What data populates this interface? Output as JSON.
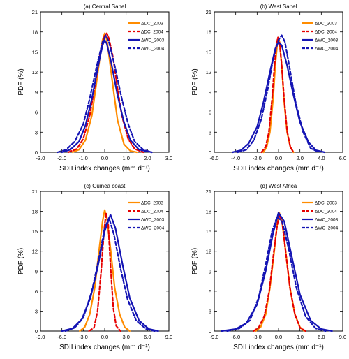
{
  "chart_data": [
    {
      "type": "line",
      "title": "(a) Central Sahel",
      "xlabel": "SDII index changes (mm d⁻¹)",
      "ylabel": "PDF (%)",
      "xlim": [
        -3.0,
        3.0
      ],
      "ylim": [
        0,
        21
      ],
      "xticks": [
        -3.0,
        -2.0,
        -1.0,
        0.0,
        1.0,
        2.0,
        3.0
      ],
      "xtick_labels": [
        "-3.0",
        "-2.0",
        "-1.0",
        "0.0",
        "1.0",
        "2.0",
        "3.0"
      ],
      "yticks": [
        0,
        3,
        6,
        9,
        12,
        15,
        18,
        21
      ],
      "ytick_labels": [
        "0",
        "3",
        "6",
        "9",
        "12",
        "15",
        "18",
        "21"
      ],
      "legend_position": "top-right",
      "series": [
        {
          "name": "ΔDC_2003",
          "color": "#ff8c00",
          "dash": "solid",
          "x": [
            -1.5,
            -1.2,
            -0.9,
            -0.6,
            -0.4,
            -0.2,
            -0.1,
            0.0,
            0.1,
            0.2,
            0.4,
            0.6,
            0.9,
            1.2,
            1.5
          ],
          "y": [
            0,
            0.4,
            1.8,
            5.5,
            10.0,
            14.8,
            16.8,
            17.8,
            16.8,
            14.5,
            9.5,
            4.8,
            1.2,
            0.2,
            0
          ]
        },
        {
          "name": "ΔDC_2004",
          "color": "#e60000",
          "dash": "dash",
          "x": [
            -1.7,
            -1.3,
            -1.0,
            -0.7,
            -0.4,
            -0.2,
            0.0,
            0.1,
            0.2,
            0.4,
            0.6,
            0.8,
            1.1,
            1.4,
            1.8
          ],
          "y": [
            0,
            0.5,
            2.0,
            5.5,
            11.0,
            15.0,
            17.5,
            17.8,
            17.0,
            14.0,
            9.5,
            5.5,
            2.0,
            0.5,
            0
          ]
        },
        {
          "name": "ΔWC_2003",
          "color": "#1414b4",
          "dash": "solid",
          "x": [
            -2.0,
            -1.6,
            -1.2,
            -0.9,
            -0.6,
            -0.3,
            -0.1,
            0.0,
            0.1,
            0.3,
            0.6,
            0.9,
            1.2,
            1.6,
            2.2
          ],
          "y": [
            0,
            0.4,
            1.6,
            4.0,
            8.0,
            13.0,
            16.0,
            16.8,
            16.2,
            13.5,
            8.5,
            4.5,
            1.8,
            0.4,
            0
          ]
        },
        {
          "name": "ΔWC_2004",
          "color": "#1414b4",
          "dash": "dash",
          "x": [
            -2.2,
            -1.8,
            -1.4,
            -1.0,
            -0.7,
            -0.4,
            -0.1,
            0.05,
            0.2,
            0.5,
            0.8,
            1.1,
            1.4,
            1.8,
            2.2
          ],
          "y": [
            0,
            0.4,
            1.6,
            4.2,
            8.0,
            12.5,
            16.5,
            17.5,
            16.5,
            12.5,
            8.0,
            4.2,
            1.6,
            0.4,
            0
          ]
        }
      ]
    },
    {
      "type": "line",
      "title": "(b) West Sahel",
      "xlabel": "SDII index changes (mm d⁻¹)",
      "ylabel": "PDF (%)",
      "xlim": [
        -6.0,
        6.0
      ],
      "ylim": [
        0,
        21
      ],
      "xticks": [
        -6.0,
        -4.0,
        -2.0,
        0.0,
        2.0,
        4.0,
        6.0
      ],
      "xtick_labels": [
        "-6.0",
        "-4.0",
        "-2.0",
        "0.0",
        "2.0",
        "4.0",
        "6.0"
      ],
      "yticks": [
        0,
        3,
        6,
        9,
        12,
        15,
        18,
        21
      ],
      "ytick_labels": [
        "0",
        "3",
        "6",
        "9",
        "12",
        "15",
        "18",
        "21"
      ],
      "legend_position": "top-right",
      "series": [
        {
          "name": "ΔDC_2003",
          "color": "#ff8c00",
          "dash": "solid",
          "x": [
            -1.4,
            -1.1,
            -0.8,
            -0.5,
            -0.3,
            -0.1,
            0.0,
            0.1,
            0.3,
            0.5,
            0.8,
            1.1,
            1.4
          ],
          "y": [
            0,
            0.8,
            3.0,
            8.0,
            13.0,
            16.5,
            17.0,
            16.5,
            13.0,
            8.0,
            3.0,
            0.8,
            0
          ]
        },
        {
          "name": "ΔDC_2004",
          "color": "#e60000",
          "dash": "dash",
          "x": [
            -1.6,
            -1.2,
            -0.9,
            -0.6,
            -0.4,
            -0.2,
            -0.05,
            0.1,
            0.3,
            0.5,
            0.8,
            1.1,
            1.4
          ],
          "y": [
            0,
            0.8,
            3.0,
            8.0,
            12.5,
            16.0,
            17.2,
            16.5,
            13.0,
            8.5,
            3.2,
            0.8,
            0
          ]
        },
        {
          "name": "ΔWC_2003",
          "color": "#1414b4",
          "dash": "solid",
          "x": [
            -4.3,
            -3.5,
            -2.8,
            -2.0,
            -1.4,
            -0.8,
            -0.3,
            0.0,
            0.3,
            0.8,
            1.4,
            2.0,
            2.8,
            3.5,
            4.3
          ],
          "y": [
            0,
            0.3,
            1.3,
            3.8,
            7.5,
            12.0,
            15.5,
            16.5,
            16.0,
            13.0,
            8.5,
            4.5,
            1.5,
            0.3,
            0
          ]
        },
        {
          "name": "ΔWC_2004",
          "color": "#1414b4",
          "dash": "dash",
          "x": [
            -3.8,
            -3.0,
            -2.3,
            -1.6,
            -1.0,
            -0.5,
            0.0,
            0.3,
            0.6,
            1.0,
            1.6,
            2.3,
            3.0,
            3.8
          ],
          "y": [
            0,
            0.4,
            1.8,
            5.0,
            9.5,
            14.0,
            16.8,
            17.5,
            16.5,
            13.0,
            7.5,
            3.0,
            0.6,
            0
          ]
        }
      ]
    },
    {
      "type": "line",
      "title": "(c) Guinea coast",
      "xlabel": "SDII index changes (mm d⁻¹)",
      "ylabel": "PDF (%)",
      "xlim": [
        -9.0,
        9.0
      ],
      "ylim": [
        0,
        21
      ],
      "xticks": [
        -9.0,
        -6.0,
        -3.0,
        0.0,
        3.0,
        6.0,
        9.0
      ],
      "xtick_labels": [
        "-9.0",
        "-6.0",
        "-3.0",
        "0.0",
        "3.0",
        "6.0",
        "9.0"
      ],
      "yticks": [
        0,
        3,
        6,
        9,
        12,
        15,
        18,
        21
      ],
      "ytick_labels": [
        "0",
        "3",
        "6",
        "9",
        "12",
        "15",
        "18",
        "21"
      ],
      "legend_position": "top-right",
      "series": [
        {
          "name": "ΔDC_2003",
          "color": "#ff8c00",
          "dash": "solid",
          "x": [
            -3.5,
            -2.8,
            -2.1,
            -1.4,
            -0.8,
            -0.3,
            0.0,
            0.3,
            0.8,
            1.4,
            2.1,
            2.8,
            3.5
          ],
          "y": [
            0,
            0.6,
            2.5,
            6.5,
            12.0,
            16.5,
            18.2,
            17.0,
            12.5,
            6.5,
            2.5,
            0.6,
            0
          ]
        },
        {
          "name": "ΔDC_2004",
          "color": "#e60000",
          "dash": "dash",
          "x": [
            -2.2,
            -1.5,
            -1.0,
            -0.5,
            -0.1,
            0.2,
            0.5,
            0.8,
            1.2,
            1.6,
            2.2
          ],
          "y": [
            0,
            0.5,
            3.0,
            9.0,
            15.0,
            17.8,
            16.0,
            10.0,
            3.5,
            0.8,
            0
          ]
        },
        {
          "name": "ΔWC_2003",
          "color": "#1414b4",
          "dash": "solid",
          "x": [
            -6.0,
            -4.5,
            -3.2,
            -2.0,
            -1.0,
            0.0,
            0.8,
            1.5,
            2.5,
            3.5,
            4.8,
            6.2,
            7.5
          ],
          "y": [
            0,
            0.4,
            1.8,
            5.0,
            9.5,
            15.0,
            17.5,
            15.5,
            10.0,
            5.0,
            1.6,
            0.3,
            0
          ]
        },
        {
          "name": "ΔWC_2004",
          "color": "#1414b4",
          "dash": "dash",
          "x": [
            -5.5,
            -4.2,
            -3.0,
            -1.8,
            -0.8,
            0.0,
            0.6,
            1.3,
            2.2,
            3.2,
            4.4,
            5.8,
            7.0
          ],
          "y": [
            0,
            0.5,
            2.0,
            6.0,
            11.0,
            15.5,
            17.0,
            14.5,
            9.5,
            4.8,
            1.6,
            0.3,
            0
          ]
        }
      ]
    },
    {
      "type": "line",
      "title": "(d) West Africa",
      "xlabel": "SDII index changes (mm d⁻¹)",
      "ylabel": "PDF (%)",
      "xlim": [
        -9.0,
        9.0
      ],
      "ylim": [
        0,
        21
      ],
      "xticks": [
        -9.0,
        -6.0,
        -3.0,
        0.0,
        3.0,
        6.0,
        9.0
      ],
      "xtick_labels": [
        "-9.0",
        "-6.0",
        "-3.0",
        "0.0",
        "3.0",
        "6.0",
        "9.0"
      ],
      "yticks": [
        0,
        3,
        6,
        9,
        12,
        15,
        18,
        21
      ],
      "ytick_labels": [
        "0",
        "3",
        "6",
        "9",
        "12",
        "15",
        "18",
        "21"
      ],
      "legend_position": "top-right",
      "series": [
        {
          "name": "ΔDC_2003",
          "color": "#ff8c00",
          "dash": "solid",
          "x": [
            -3.2,
            -2.5,
            -1.8,
            -1.2,
            -0.6,
            -0.2,
            0.1,
            0.5,
            1.0,
            1.6,
            2.3,
            3.0,
            3.6
          ],
          "y": [
            0,
            0.6,
            2.5,
            6.5,
            12.0,
            16.0,
            17.8,
            16.5,
            12.0,
            6.5,
            2.5,
            0.6,
            0
          ]
        },
        {
          "name": "ΔDC_2004",
          "color": "#e60000",
          "dash": "dash",
          "x": [
            -3.5,
            -2.8,
            -2.0,
            -1.3,
            -0.7,
            -0.2,
            0.1,
            0.5,
            1.0,
            1.6,
            2.3,
            3.0,
            3.8
          ],
          "y": [
            0,
            0.5,
            2.2,
            6.0,
            11.5,
            15.8,
            17.5,
            16.5,
            12.0,
            6.5,
            2.5,
            0.5,
            0
          ]
        },
        {
          "name": "ΔWC_2003",
          "color": "#1414b4",
          "dash": "solid",
          "x": [
            -8.0,
            -6.0,
            -4.5,
            -3.0,
            -1.8,
            -0.8,
            0.0,
            0.8,
            1.8,
            3.0,
            4.5,
            6.0,
            7.5
          ],
          "y": [
            0,
            0.3,
            1.2,
            4.0,
            9.0,
            14.5,
            17.8,
            16.5,
            11.5,
            5.5,
            1.6,
            0.3,
            0
          ]
        },
        {
          "name": "ΔWC_2004",
          "color": "#1414b4",
          "dash": "dash",
          "x": [
            -7.2,
            -5.5,
            -4.0,
            -2.8,
            -1.8,
            -0.9,
            -0.2,
            0.5,
            1.4,
            2.5,
            3.8,
            5.2,
            6.6
          ],
          "y": [
            0,
            0.4,
            1.6,
            5.0,
            10.0,
            15.0,
            17.2,
            16.5,
            12.5,
            6.5,
            2.2,
            0.4,
            0
          ]
        }
      ]
    }
  ]
}
